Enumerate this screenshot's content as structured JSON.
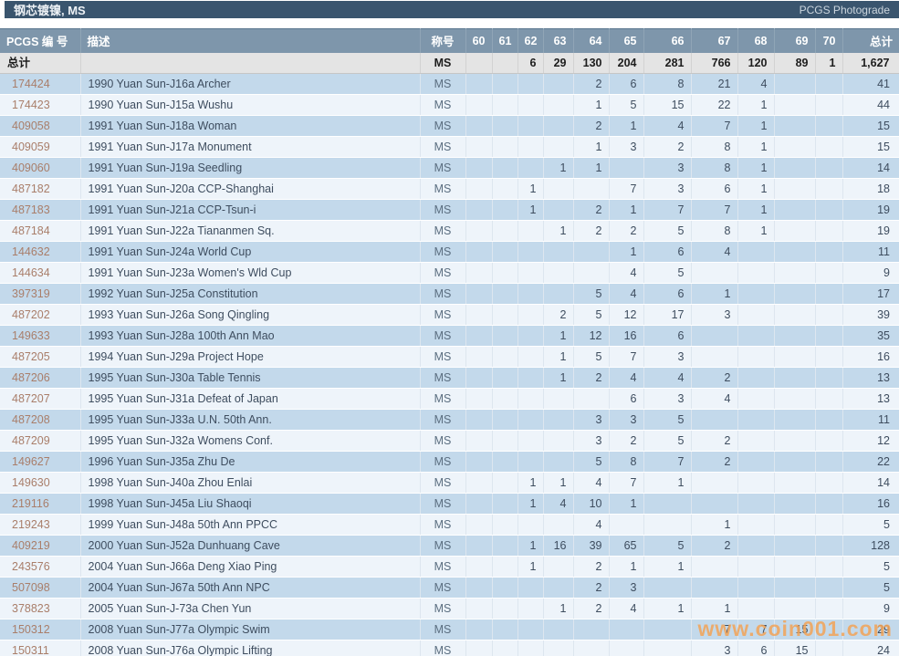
{
  "titlebar": {
    "title": "钢芯镀镍, MS",
    "brand": "PCGS Photograde"
  },
  "columns": [
    "PCGS 编 号",
    "描述",
    "称号",
    "60",
    "61",
    "62",
    "63",
    "64",
    "65",
    "66",
    "67",
    "68",
    "69",
    "70",
    "总计"
  ],
  "totals": {
    "label": "总计",
    "designation": "MS",
    "values": [
      "",
      "",
      "6",
      "29",
      "130",
      "204",
      "281",
      "766",
      "120",
      "89",
      "1"
    ],
    "total": "1,627"
  },
  "rows": [
    {
      "pcgs": "174424",
      "desc": "1990 Yuan Sun-J16a Archer",
      "designation": "MS",
      "values": [
        "",
        "",
        "",
        "",
        "2",
        "6",
        "8",
        "21",
        "4",
        "",
        ""
      ],
      "total": "41"
    },
    {
      "pcgs": "174423",
      "desc": "1990 Yuan Sun-J15a Wushu",
      "designation": "MS",
      "values": [
        "",
        "",
        "",
        "",
        "1",
        "5",
        "15",
        "22",
        "1",
        "",
        ""
      ],
      "total": "44"
    },
    {
      "pcgs": "409058",
      "desc": "1991 Yuan Sun-J18a Woman",
      "designation": "MS",
      "values": [
        "",
        "",
        "",
        "",
        "2",
        "1",
        "4",
        "7",
        "1",
        "",
        ""
      ],
      "total": "15"
    },
    {
      "pcgs": "409059",
      "desc": "1991 Yuan Sun-J17a Monument",
      "designation": "MS",
      "values": [
        "",
        "",
        "",
        "",
        "1",
        "3",
        "2",
        "8",
        "1",
        "",
        ""
      ],
      "total": "15"
    },
    {
      "pcgs": "409060",
      "desc": "1991 Yuan Sun-J19a Seedling",
      "designation": "MS",
      "values": [
        "",
        "",
        "",
        "1",
        "1",
        "",
        "3",
        "8",
        "1",
        "",
        ""
      ],
      "total": "14"
    },
    {
      "pcgs": "487182",
      "desc": "1991 Yuan Sun-J20a CCP-Shanghai",
      "designation": "MS",
      "values": [
        "",
        "",
        "1",
        "",
        "",
        "7",
        "3",
        "6",
        "1",
        "",
        ""
      ],
      "total": "18"
    },
    {
      "pcgs": "487183",
      "desc": "1991 Yuan Sun-J21a CCP-Tsun-i",
      "designation": "MS",
      "values": [
        "",
        "",
        "1",
        "",
        "2",
        "1",
        "7",
        "7",
        "1",
        "",
        ""
      ],
      "total": "19"
    },
    {
      "pcgs": "487184",
      "desc": "1991 Yuan Sun-J22a Tiananmen Sq.",
      "designation": "MS",
      "values": [
        "",
        "",
        "",
        "1",
        "2",
        "2",
        "5",
        "8",
        "1",
        "",
        ""
      ],
      "total": "19"
    },
    {
      "pcgs": "144632",
      "desc": "1991 Yuan Sun-J24a World Cup",
      "designation": "MS",
      "values": [
        "",
        "",
        "",
        "",
        "",
        "1",
        "6",
        "4",
        "",
        "",
        ""
      ],
      "total": "11"
    },
    {
      "pcgs": "144634",
      "desc": "1991 Yuan Sun-J23a Women's Wld Cup",
      "designation": "MS",
      "values": [
        "",
        "",
        "",
        "",
        "",
        "4",
        "5",
        "",
        "",
        "",
        ""
      ],
      "total": "9"
    },
    {
      "pcgs": "397319",
      "desc": "1992 Yuan Sun-J25a Constitution",
      "designation": "MS",
      "values": [
        "",
        "",
        "",
        "",
        "5",
        "4",
        "6",
        "1",
        "",
        "",
        ""
      ],
      "total": "17"
    },
    {
      "pcgs": "487202",
      "desc": "1993 Yuan Sun-J26a Song Qingling",
      "designation": "MS",
      "values": [
        "",
        "",
        "",
        "2",
        "5",
        "12",
        "17",
        "3",
        "",
        "",
        ""
      ],
      "total": "39"
    },
    {
      "pcgs": "149633",
      "desc": "1993 Yuan Sun-J28a 100th Ann Mao",
      "designation": "MS",
      "values": [
        "",
        "",
        "",
        "1",
        "12",
        "16",
        "6",
        "",
        "",
        "",
        ""
      ],
      "total": "35"
    },
    {
      "pcgs": "487205",
      "desc": "1994 Yuan Sun-J29a Project Hope",
      "designation": "MS",
      "values": [
        "",
        "",
        "",
        "1",
        "5",
        "7",
        "3",
        "",
        "",
        "",
        ""
      ],
      "total": "16"
    },
    {
      "pcgs": "487206",
      "desc": "1995 Yuan Sun-J30a Table Tennis",
      "designation": "MS",
      "values": [
        "",
        "",
        "",
        "1",
        "2",
        "4",
        "4",
        "2",
        "",
        "",
        ""
      ],
      "total": "13"
    },
    {
      "pcgs": "487207",
      "desc": "1995 Yuan Sun-J31a Defeat of Japan",
      "designation": "MS",
      "values": [
        "",
        "",
        "",
        "",
        "",
        "6",
        "3",
        "4",
        "",
        "",
        ""
      ],
      "total": "13"
    },
    {
      "pcgs": "487208",
      "desc": "1995 Yuan Sun-J33a U.N. 50th Ann.",
      "designation": "MS",
      "values": [
        "",
        "",
        "",
        "",
        "3",
        "3",
        "5",
        "",
        "",
        "",
        ""
      ],
      "total": "11"
    },
    {
      "pcgs": "487209",
      "desc": "1995 Yuan Sun-J32a Womens Conf.",
      "designation": "MS",
      "values": [
        "",
        "",
        "",
        "",
        "3",
        "2",
        "5",
        "2",
        "",
        "",
        ""
      ],
      "total": "12"
    },
    {
      "pcgs": "149627",
      "desc": "1996 Yuan Sun-J35a Zhu De",
      "designation": "MS",
      "values": [
        "",
        "",
        "",
        "",
        "5",
        "8",
        "7",
        "2",
        "",
        "",
        ""
      ],
      "total": "22"
    },
    {
      "pcgs": "149630",
      "desc": "1998 Yuan Sun-J40a Zhou Enlai",
      "designation": "MS",
      "values": [
        "",
        "",
        "1",
        "1",
        "4",
        "7",
        "1",
        "",
        "",
        "",
        ""
      ],
      "total": "14"
    },
    {
      "pcgs": "219116",
      "desc": "1998 Yuan Sun-J45a Liu Shaoqi",
      "designation": "MS",
      "values": [
        "",
        "",
        "1",
        "4",
        "10",
        "1",
        "",
        "",
        "",
        "",
        ""
      ],
      "total": "16"
    },
    {
      "pcgs": "219243",
      "desc": "1999 Yuan Sun-J48a 50th Ann PPCC",
      "designation": "MS",
      "values": [
        "",
        "",
        "",
        "",
        "4",
        "",
        "",
        "1",
        "",
        "",
        ""
      ],
      "total": "5"
    },
    {
      "pcgs": "409219",
      "desc": "2000 Yuan Sun-J52a Dunhuang Cave",
      "designation": "MS",
      "values": [
        "",
        "",
        "1",
        "16",
        "39",
        "65",
        "5",
        "2",
        "",
        "",
        ""
      ],
      "total": "128"
    },
    {
      "pcgs": "243576",
      "desc": "2004 Yuan Sun-J66a Deng Xiao Ping",
      "designation": "MS",
      "values": [
        "",
        "",
        "1",
        "",
        "2",
        "1",
        "1",
        "",
        "",
        "",
        ""
      ],
      "total": "5"
    },
    {
      "pcgs": "507098",
      "desc": "2004 Yuan Sun-J67a 50th Ann NPC",
      "designation": "MS",
      "values": [
        "",
        "",
        "",
        "",
        "2",
        "3",
        "",
        "",
        "",
        "",
        ""
      ],
      "total": "5"
    },
    {
      "pcgs": "378823",
      "desc": "2005 Yuan Sun-J-73a Chen Yun",
      "designation": "MS",
      "values": [
        "",
        "",
        "",
        "1",
        "2",
        "4",
        "1",
        "1",
        "",
        "",
        ""
      ],
      "total": "9"
    },
    {
      "pcgs": "150312",
      "desc": "2008 Yuan Sun-J77a Olympic Swim",
      "designation": "MS",
      "values": [
        "",
        "",
        "",
        "",
        "",
        "",
        "",
        "7",
        "7",
        "15",
        ""
      ],
      "total": "29"
    },
    {
      "pcgs": "150311",
      "desc": "2008 Yuan Sun-J76a Olympic Lifting",
      "designation": "MS",
      "values": [
        "",
        "",
        "",
        "",
        "",
        "",
        "",
        "3",
        "6",
        "15",
        ""
      ],
      "total": "24"
    }
  ],
  "watermark": "www.coin001.com",
  "colors": {
    "titlebar_bg": "#3a556e",
    "header_bg": "#7e96ab",
    "totals_bg": "#e4e4e4",
    "row_blue": "#c3d9eb",
    "row_light": "#eef4fa",
    "link_color": "#a97e6a",
    "text_color": "#3e4d5f",
    "watermark_color": "#f2a458"
  }
}
